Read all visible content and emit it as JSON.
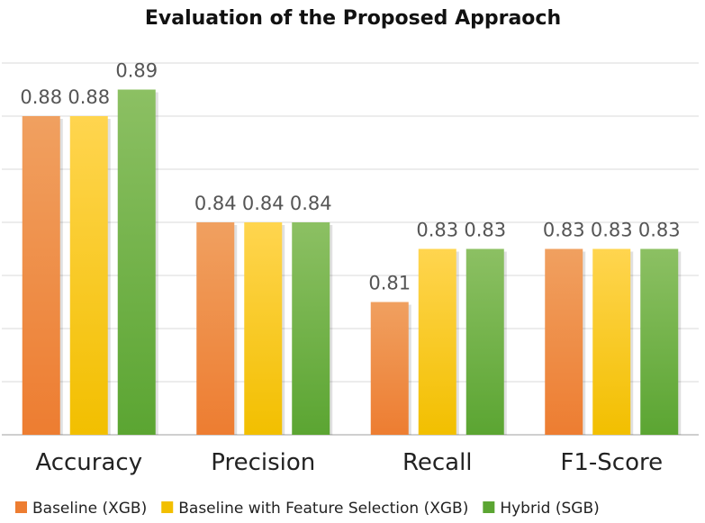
{
  "chart_data": {
    "type": "bar",
    "title": "Evaluation of the Proposed Appraoch",
    "xlabel": "",
    "ylabel": "",
    "categories": [
      "Accuracy",
      "Precision",
      "Recall",
      "F1-Score"
    ],
    "series": [
      {
        "name": "Baseline (XGB)",
        "values": [
          0.88,
          0.84,
          0.81,
          0.83
        ],
        "color": "#ed7d31",
        "colorTop": "#f0a060"
      },
      {
        "name": "Baseline with Feature Selection (XGB)",
        "values": [
          0.88,
          0.84,
          0.83,
          0.83
        ],
        "color": "#f2bf00",
        "colorTop": "#ffd54f"
      },
      {
        "name": "Hybrid (SGB)",
        "values": [
          0.89,
          0.84,
          0.83,
          0.83
        ],
        "color": "#5ba532",
        "colorTop": "#8cc063"
      }
    ],
    "ylim": [
      0.76,
      0.9
    ],
    "grid": true,
    "grid_step": 0.02,
    "legend_position": "bottom"
  }
}
